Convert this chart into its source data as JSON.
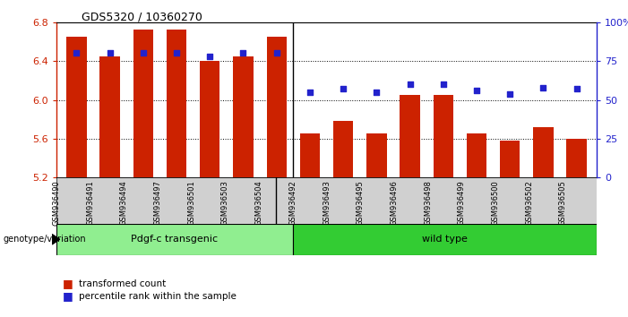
{
  "title": "GDS5320 / 10360270",
  "samples": [
    "GSM936490",
    "GSM936491",
    "GSM936494",
    "GSM936497",
    "GSM936501",
    "GSM936503",
    "GSM936504",
    "GSM936492",
    "GSM936493",
    "GSM936495",
    "GSM936496",
    "GSM936498",
    "GSM936499",
    "GSM936500",
    "GSM936502",
    "GSM936505"
  ],
  "bar_values": [
    6.65,
    6.45,
    6.72,
    6.72,
    6.4,
    6.45,
    6.65,
    5.65,
    5.78,
    5.65,
    6.05,
    6.05,
    5.65,
    5.58,
    5.72,
    5.6
  ],
  "percentile_values": [
    80,
    80,
    80,
    80,
    78,
    80,
    80,
    55,
    57,
    55,
    60,
    60,
    56,
    54,
    58,
    57
  ],
  "bar_color": "#cc2200",
  "dot_color": "#2222cc",
  "ylim": [
    5.2,
    6.8
  ],
  "y2lim": [
    0,
    100
  ],
  "yticks": [
    5.2,
    5.6,
    6.0,
    6.4,
    6.8
  ],
  "y2ticks": [
    0,
    25,
    50,
    75,
    100
  ],
  "group1_label": "Pdgf-c transgenic",
  "group2_label": "wild type",
  "group1_color": "#90ee90",
  "group2_color": "#33cc33",
  "group1_count": 7,
  "group2_count": 9,
  "legend_bar_label": "transformed count",
  "legend_dot_label": "percentile rank within the sample",
  "genotype_label": "genotype/variation",
  "bar_width": 0.6,
  "yaxis_color": "#cc2200",
  "y2axis_color": "#2222cc",
  "bg_color": "#ffffff",
  "base_value": 5.2,
  "n_samples": 16,
  "separator_idx": 6.5
}
